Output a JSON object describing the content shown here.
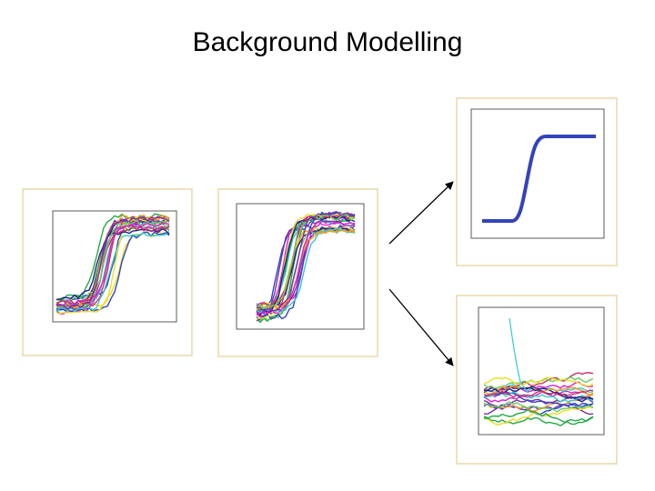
{
  "slide": {
    "title": "Background Modelling"
  }
}
